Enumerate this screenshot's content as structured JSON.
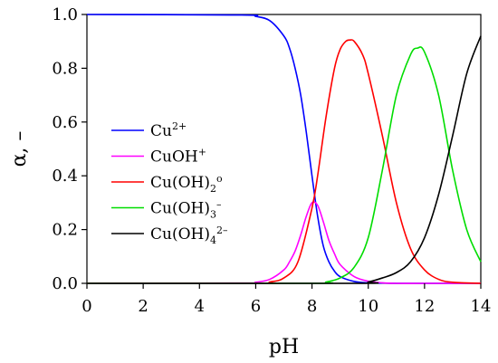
{
  "chart_data": {
    "type": "line",
    "xlabel": "pH",
    "ylabel": "α, –",
    "xlim": [
      0,
      14
    ],
    "ylim": [
      0,
      1.0
    ],
    "xticks": [
      "0",
      "2",
      "4",
      "6",
      "8",
      "10",
      "12",
      "14"
    ],
    "yticks": [
      "0.0",
      "0.2",
      "0.4",
      "0.6",
      "0.8",
      "1.0"
    ],
    "grid": false,
    "legend_position": "left-middle",
    "series": [
      {
        "label": {
          "base": "Cu",
          "sup": "2+",
          "sub": "",
          "after": ""
        },
        "color": "#0000ff",
        "x": [
          0,
          5.5,
          6.0,
          6.5,
          7.0,
          7.2,
          7.4,
          7.6,
          7.8,
          8.0,
          8.2,
          8.4,
          8.6,
          8.8,
          9.0,
          9.5,
          10.0,
          10.5,
          11.0,
          12.0,
          14.0
        ],
        "y": [
          1.0,
          0.998,
          0.993,
          0.977,
          0.92,
          0.875,
          0.8,
          0.7,
          0.56,
          0.4,
          0.25,
          0.14,
          0.08,
          0.045,
          0.025,
          0.007,
          0.002,
          0.001,
          0.0,
          0.0,
          0.0
        ]
      },
      {
        "label": {
          "base": "CuOH",
          "sup": "+",
          "sub": "",
          "after": ""
        },
        "color": "#ff00ff",
        "x": [
          0,
          5.5,
          6.0,
          6.5,
          7.0,
          7.2,
          7.4,
          7.6,
          7.8,
          8.0,
          8.2,
          8.4,
          8.6,
          8.8,
          9.0,
          9.5,
          10.0,
          10.5,
          11.0,
          12.0,
          14.0
        ],
        "y": [
          0.0,
          0.001,
          0.004,
          0.015,
          0.05,
          0.08,
          0.12,
          0.18,
          0.25,
          0.3,
          0.29,
          0.23,
          0.16,
          0.11,
          0.07,
          0.025,
          0.008,
          0.002,
          0.0,
          0.0,
          0.0
        ]
      },
      {
        "label": {
          "base": "Cu(OH)",
          "sup": "",
          "sub": "2",
          "after": "o"
        },
        "color": "#ff0000",
        "x": [
          0,
          6.0,
          6.5,
          7.0,
          7.5,
          8.0,
          8.2,
          8.5,
          8.8,
          9.0,
          9.2,
          9.35,
          9.5,
          9.8,
          10.0,
          10.5,
          11.0,
          11.5,
          12.0,
          12.5,
          13.0,
          14.0
        ],
        "y": [
          0.0,
          0.0,
          0.005,
          0.02,
          0.08,
          0.28,
          0.4,
          0.62,
          0.8,
          0.87,
          0.9,
          0.905,
          0.9,
          0.85,
          0.78,
          0.55,
          0.3,
          0.13,
          0.05,
          0.015,
          0.004,
          0.0
        ]
      },
      {
        "label": {
          "base": "Cu(OH)",
          "sup": "",
          "sub": "3",
          "after": "–"
        },
        "color": "#00dd00",
        "x": [
          0,
          8.0,
          8.5,
          9.0,
          9.5,
          10.0,
          10.5,
          11.0,
          11.5,
          11.75,
          12.0,
          12.5,
          13.0,
          13.5,
          14.0
        ],
        "y": [
          0.0,
          0.0,
          0.005,
          0.02,
          0.06,
          0.17,
          0.42,
          0.7,
          0.85,
          0.875,
          0.86,
          0.7,
          0.42,
          0.2,
          0.08
        ]
      },
      {
        "label": {
          "base": "Cu(OH)",
          "sup": "",
          "sub": "4",
          "after": "2–"
        },
        "color": "#000000",
        "x": [
          0,
          9.5,
          10.0,
          10.5,
          11.0,
          11.5,
          12.0,
          12.5,
          13.0,
          13.5,
          14.0
        ],
        "y": [
          0.0,
          0.0,
          0.005,
          0.02,
          0.04,
          0.08,
          0.17,
          0.33,
          0.55,
          0.78,
          0.92
        ]
      }
    ]
  }
}
